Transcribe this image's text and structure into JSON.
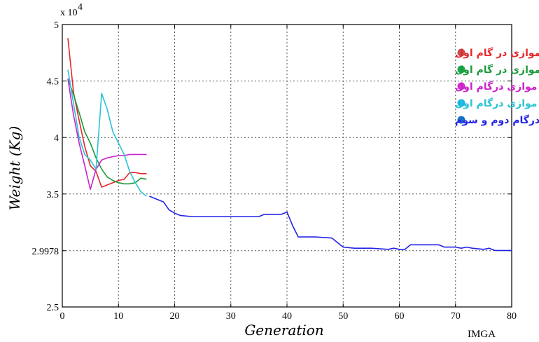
{
  "chart_data": {
    "type": "line",
    "title": "",
    "xlabel": "Generation",
    "ylabel": "Weight (Kg)",
    "y_multiplier_label": "x 10",
    "y_multiplier_exp": "4",
    "caption": "IMGA",
    "xlim": [
      0,
      80
    ],
    "ylim": [
      2.5,
      5
    ],
    "x_ticks": [
      0,
      10,
      20,
      30,
      40,
      50,
      60,
      70,
      80
    ],
    "y_ticks": [
      {
        "value": 2.5,
        "label": "2.5"
      },
      {
        "value": 2.9978,
        "label": "2.9978"
      },
      {
        "value": 3.5,
        "label": "3.5"
      },
      {
        "value": 4.0,
        "label": "4"
      },
      {
        "value": 4.5,
        "label": "4.5"
      },
      {
        "value": 5.0,
        "label": "5"
      }
    ],
    "grid": true,
    "legend_position": "top-right",
    "series": [
      {
        "name": "جامعه موازی در گام اول",
        "color": "#e8262a",
        "marker_color": "#c0504d",
        "x": [
          1,
          2,
          3,
          4,
          5,
          6,
          7,
          8,
          9,
          10,
          11,
          12,
          13,
          14,
          15
        ],
        "y": [
          4.88,
          4.4,
          4.15,
          3.92,
          3.75,
          3.7,
          3.56,
          3.58,
          3.6,
          3.62,
          3.63,
          3.69,
          3.69,
          3.68,
          3.68
        ]
      },
      {
        "name": "جامعه موازی در گام اول",
        "color": "#1d9a3c",
        "marker_color": "#1aa74a",
        "x": [
          1,
          2,
          3,
          4,
          5,
          6,
          7,
          8,
          9,
          10,
          11,
          12,
          13,
          14,
          15
        ],
        "y": [
          4.52,
          4.38,
          4.22,
          4.05,
          3.95,
          3.82,
          3.72,
          3.65,
          3.62,
          3.6,
          3.59,
          3.59,
          3.6,
          3.64,
          3.63
        ]
      },
      {
        "name": "جامعه موازی درگام اول",
        "color": "#cc22cc",
        "marker_color": "#d22fc9",
        "x": [
          1,
          2,
          3,
          4,
          5,
          6,
          7,
          8,
          9,
          10,
          11,
          12,
          13,
          14,
          15
        ],
        "y": [
          4.52,
          4.2,
          3.95,
          3.75,
          3.54,
          3.72,
          3.8,
          3.82,
          3.83,
          3.84,
          3.84,
          3.85,
          3.85,
          3.85,
          3.85
        ]
      },
      {
        "name": "جامعه موازی درگام اول",
        "color": "#29c3d3",
        "marker_color": "#1cb2e8",
        "x": [
          1,
          2,
          3,
          4,
          5,
          6,
          7,
          8,
          9,
          10,
          11,
          12,
          13,
          14,
          15
        ],
        "y": [
          4.6,
          4.3,
          4.0,
          3.85,
          3.8,
          3.72,
          4.39,
          4.25,
          4.05,
          3.95,
          3.85,
          3.7,
          3.6,
          3.52,
          3.48
        ]
      },
      {
        "name": "جامعه درگام دوم و سوم",
        "color": "#2323e6",
        "marker_color": "#1a6fc4",
        "x": [
          15.5,
          17,
          18,
          19,
          20,
          21,
          23,
          25,
          30,
          35,
          36,
          38,
          39,
          40,
          41,
          42,
          45,
          48,
          50,
          52,
          55,
          58,
          59,
          60,
          61,
          62,
          65,
          67,
          68,
          70,
          71,
          72,
          73,
          75,
          76,
          77,
          80
        ],
        "y": [
          3.48,
          3.45,
          3.43,
          3.36,
          3.33,
          3.31,
          3.3,
          3.3,
          3.3,
          3.3,
          3.32,
          3.32,
          3.32,
          3.34,
          3.22,
          3.12,
          3.12,
          3.11,
          3.03,
          3.02,
          3.02,
          3.01,
          3.02,
          3.01,
          3.01,
          3.05,
          3.05,
          3.05,
          3.03,
          3.03,
          3.02,
          3.03,
          3.02,
          3.01,
          3.02,
          3.0,
          3.0
        ]
      }
    ]
  }
}
